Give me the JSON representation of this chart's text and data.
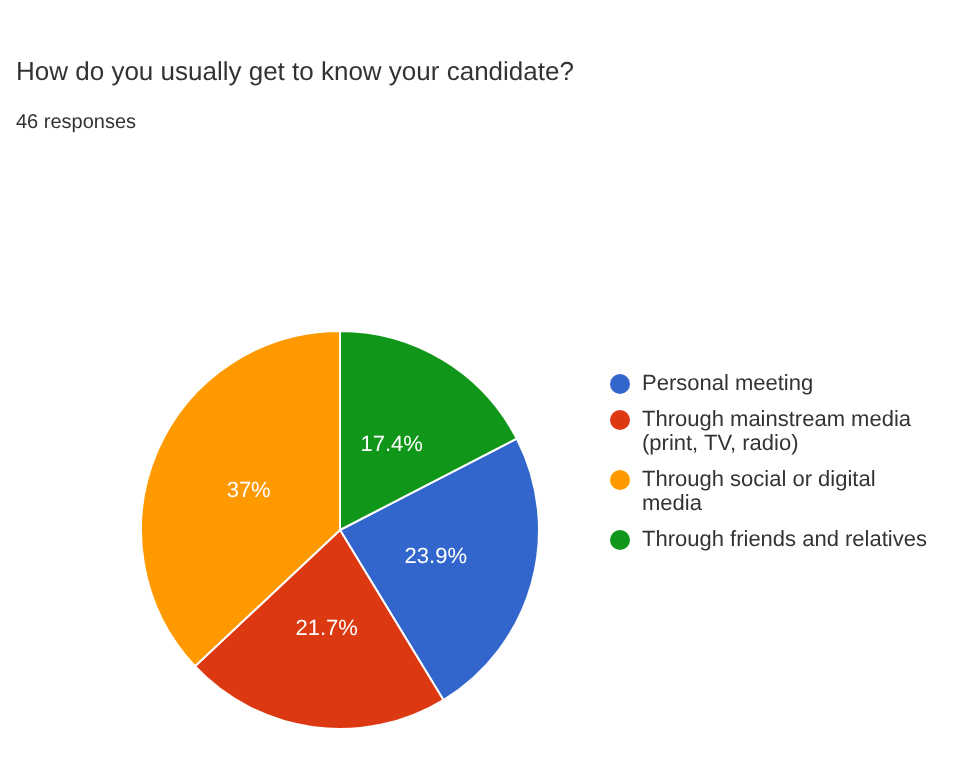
{
  "chart_data": {
    "type": "pie",
    "title": "How do you usually get to know your candidate?",
    "subtitle": "46 responses",
    "categories": [
      "Personal meeting",
      "Through mainstream media (print, TV, radio)",
      "Through social or digital media",
      "Through friends and relatives"
    ],
    "values": [
      23.9,
      21.7,
      37,
      17.4
    ],
    "colors": [
      "#3366cc",
      "#dc3912",
      "#ff9900",
      "#109618"
    ],
    "value_labels": [
      "23.9%",
      "21.7%",
      "37%",
      "17.4%"
    ],
    "legend": "right"
  }
}
